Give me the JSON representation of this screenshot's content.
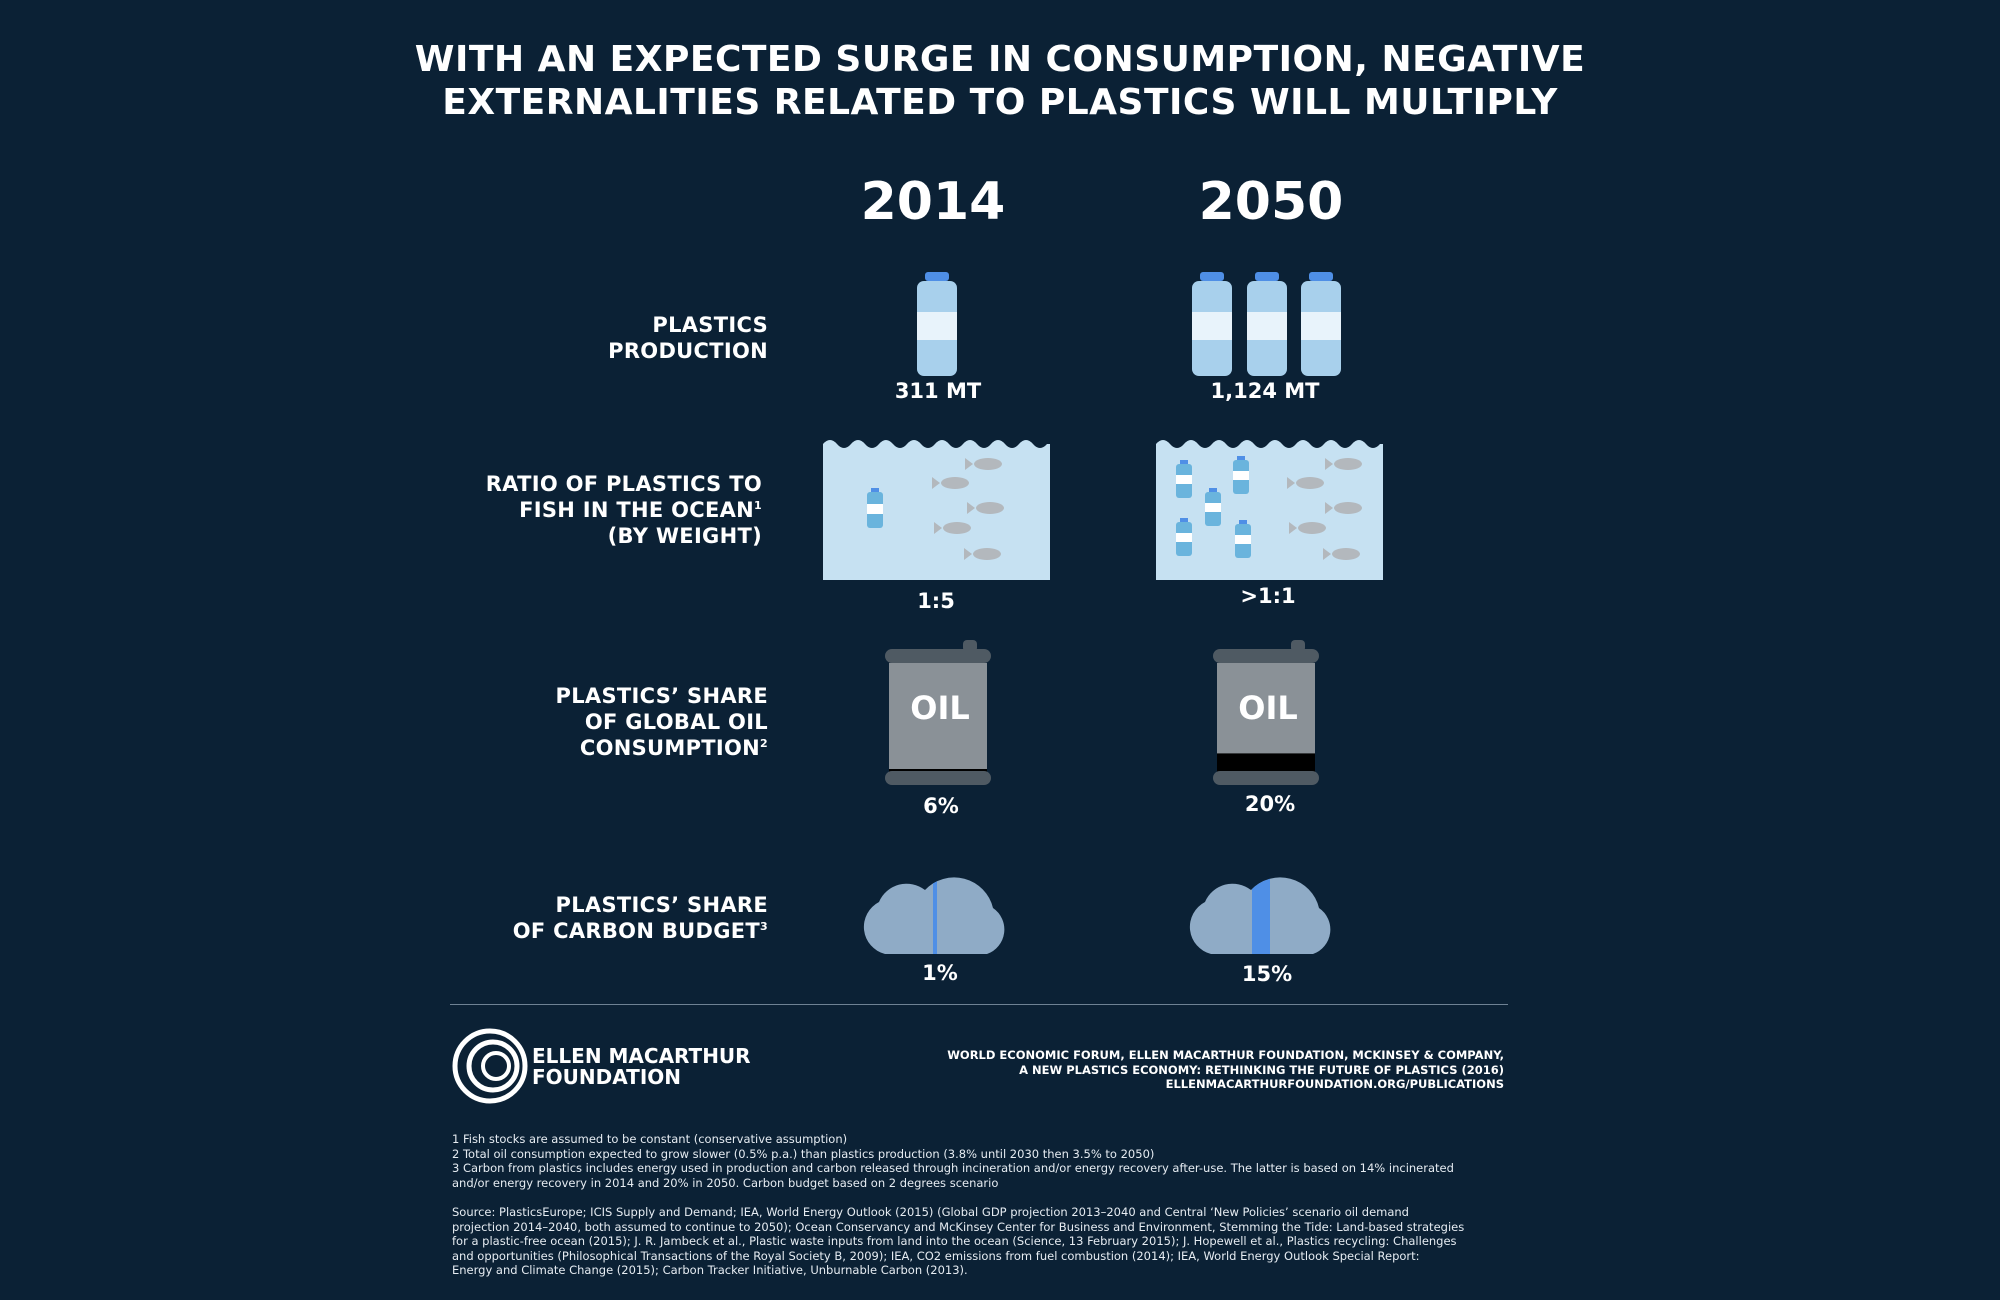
{
  "title_line1": "WITH AN EXPECTED SURGE IN CONSUMPTION, NEGATIVE",
  "title_line2": "EXTERNALITIES  RELATED TO PLASTICS WILL MULTIPLY",
  "years": [
    "2014",
    "2050"
  ],
  "rows": {
    "production": {
      "label_lines": [
        "PLASTICS",
        "PRODUCTION"
      ],
      "values": [
        "311 MT",
        "1,124 MT"
      ],
      "bottle_counts": [
        1,
        3
      ]
    },
    "ratio": {
      "label_lines": [
        "RATIO OF PLASTICS TO",
        "FISH IN THE OCEAN",
        "(BY WEIGHT)"
      ],
      "footnote_mark": "1",
      "values": [
        "1:5",
        ">1:1"
      ]
    },
    "oil": {
      "label_lines": [
        "PLASTICS’ SHARE",
        "OF GLOBAL OIL",
        "CONSUMPTION"
      ],
      "footnote_mark": "2",
      "barrel_text": "OIL",
      "values": [
        "6%",
        "20%"
      ],
      "shares": [
        0.06,
        0.2
      ]
    },
    "carbon": {
      "label_lines": [
        "PLASTICS’ SHARE",
        "OF CARBON BUDGET"
      ],
      "footnote_mark": "3",
      "values": [
        "1%",
        "15%"
      ],
      "shares": [
        0.01,
        0.15
      ]
    }
  },
  "organization": {
    "name_line1": "ELLEN MACARTHUR",
    "name_line2": "FOUNDATION",
    "logo_icon": "concentric-circles-logo"
  },
  "citation": {
    "line1": "WORLD ECONOMIC FORUM, ELLEN MACARTHUR FOUNDATION, MCKINSEY & COMPANY,",
    "line2": "A NEW PLASTICS ECONOMY: RETHINKING THE FUTURE OF PLASTICS (2016)",
    "line3": "ELLENMACARTHURFOUNDATION.ORG/PUBLICATIONS"
  },
  "footnotes": {
    "n1": "1 Fish stocks are assumed to be constant (conservative assumption)",
    "n2": "2 Total oil consumption expected to grow slower (0.5% p.a.) than plastics production (3.8% until 2030 then 3.5% to 2050)",
    "n3a": "3 Carbon from plastics includes energy used in production and carbon released through incineration and/or energy recovery after-use. The latter is based on 14% incinerated",
    "n3b": "and/or energy recovery in 2014 and 20% in 2050. Carbon budget based on 2 degrees scenario"
  },
  "source": {
    "l1": "Source: PlasticsEurope; ICIS Supply and Demand; IEA, World Energy Outlook (2015) (Global GDP projection 2013–2040 and Central ‘New Policies’ scenario oil demand",
    "l2": "projection 2014–2040, both assumed to continue to 2050); Ocean Conservancy and McKinsey Center for Business and Environment, Stemming the Tide: Land-based strategies",
    "l3": "for a plastic-free ocean (2015); J. R. Jambeck et al., Plastic waste inputs from land into the ocean (Science, 13 February 2015); J. Hopewell et al., Plastics recycling: Challenges",
    "l4": "and opportunities (Philosophical Transactions of the Royal Society B, 2009); IEA, CO2 emissions from fuel combustion (2014); IEA, World Energy Outlook Special Report:",
    "l5": "Energy and Climate Change (2015); Carbon Tracker Initiative, Unburnable Carbon (2013)."
  },
  "colors": {
    "background": "#0b2135",
    "water": "#c6e1f2",
    "bottle": "#a8d0ec",
    "bottle_cap": "#4f8fe6",
    "fish": "#b3b8bd",
    "barrel": "#8a9197",
    "barrel_rim": "#4f5a63",
    "cloud": "#8fabc6",
    "carbon_share": "#4f8fe6"
  }
}
